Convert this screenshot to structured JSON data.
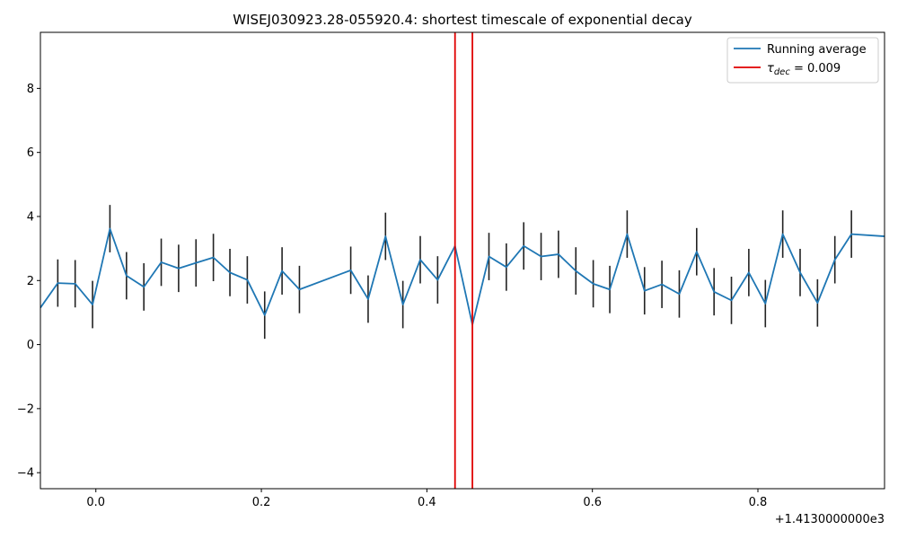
{
  "chart_data": {
    "type": "line",
    "title": "WISEJ030923.28-055920.4: shortest timescale of exponential decay",
    "xlabel": "",
    "ylabel": "",
    "x_offset_label": "+1.4130000000e3",
    "xlim": [
      -0.067,
      0.953
    ],
    "ylim": [
      -4.5,
      9.75
    ],
    "xticks": [
      0.0,
      0.2,
      0.4,
      0.6,
      0.8
    ],
    "xtick_labels": [
      "0.0",
      "0.2",
      "0.4",
      "0.6",
      "0.8"
    ],
    "yticks": [
      -4,
      -2,
      0,
      2,
      4,
      6,
      8
    ],
    "ytick_labels": [
      "−4",
      "−2",
      "0",
      "2",
      "4",
      "6",
      "8"
    ],
    "grid": false,
    "legend_position": "top-right",
    "legend": {
      "running_average": "Running average",
      "tau_symbol": "τ",
      "tau_subscript": "dec",
      "tau_value": " = 0.009"
    },
    "colors": {
      "line": "#1f77b4",
      "errorbar": "#222222",
      "vline": "#e00000"
    },
    "vlines": [
      0.434,
      0.455
    ],
    "series": [
      {
        "x": [
          -0.067,
          -0.046,
          -0.025,
          -0.004,
          0.017,
          0.037,
          0.058,
          0.079,
          0.1,
          0.121,
          0.142,
          0.162,
          0.183,
          0.204,
          0.225,
          0.246,
          0.308,
          0.329,
          0.35,
          0.371,
          0.392,
          0.413,
          0.434,
          0.455,
          0.475,
          0.496,
          0.517,
          0.538,
          0.559,
          0.58,
          0.601,
          0.621,
          0.642,
          0.663,
          0.684,
          0.705,
          0.726,
          0.747,
          0.768,
          0.789,
          0.809,
          0.83,
          0.851,
          0.872,
          0.893,
          0.913,
          0.953
        ],
        "y": [
          1.15,
          1.92,
          1.9,
          1.25,
          3.62,
          2.15,
          1.8,
          2.57,
          2.38,
          2.55,
          2.72,
          2.25,
          2.02,
          0.92,
          2.3,
          1.72,
          2.32,
          1.42,
          3.38,
          1.25,
          2.65,
          2.02,
          3.08,
          0.62,
          2.75,
          2.42,
          3.08,
          2.75,
          2.82,
          2.3,
          1.9,
          1.72,
          3.45,
          1.68,
          1.88,
          1.58,
          2.9,
          1.65,
          1.38,
          2.25,
          1.28,
          3.45,
          2.25,
          1.3,
          2.65,
          3.45,
          3.38
        ]
      }
    ],
    "errorbars": {
      "x": [
        -0.046,
        -0.025,
        -0.004,
        0.017,
        0.037,
        0.058,
        0.079,
        0.1,
        0.121,
        0.142,
        0.162,
        0.183,
        0.204,
        0.225,
        0.246,
        0.308,
        0.329,
        0.35,
        0.371,
        0.392,
        0.413,
        0.475,
        0.496,
        0.517,
        0.538,
        0.559,
        0.58,
        0.601,
        0.621,
        0.642,
        0.663,
        0.684,
        0.705,
        0.726,
        0.747,
        0.768,
        0.789,
        0.809,
        0.83,
        0.851,
        0.872,
        0.893,
        0.913
      ],
      "y": [
        1.92,
        1.9,
        1.25,
        3.62,
        2.15,
        1.8,
        2.57,
        2.38,
        2.55,
        2.72,
        2.25,
        2.02,
        0.92,
        2.3,
        1.72,
        2.32,
        1.42,
        3.38,
        1.25,
        2.65,
        2.02,
        2.75,
        2.42,
        3.08,
        2.75,
        2.82,
        2.3,
        1.9,
        1.72,
        3.45,
        1.68,
        1.88,
        1.58,
        2.9,
        1.65,
        1.38,
        2.25,
        1.28,
        3.45,
        2.25,
        1.3,
        2.65,
        3.45
      ],
      "yerr": 0.74
    }
  }
}
